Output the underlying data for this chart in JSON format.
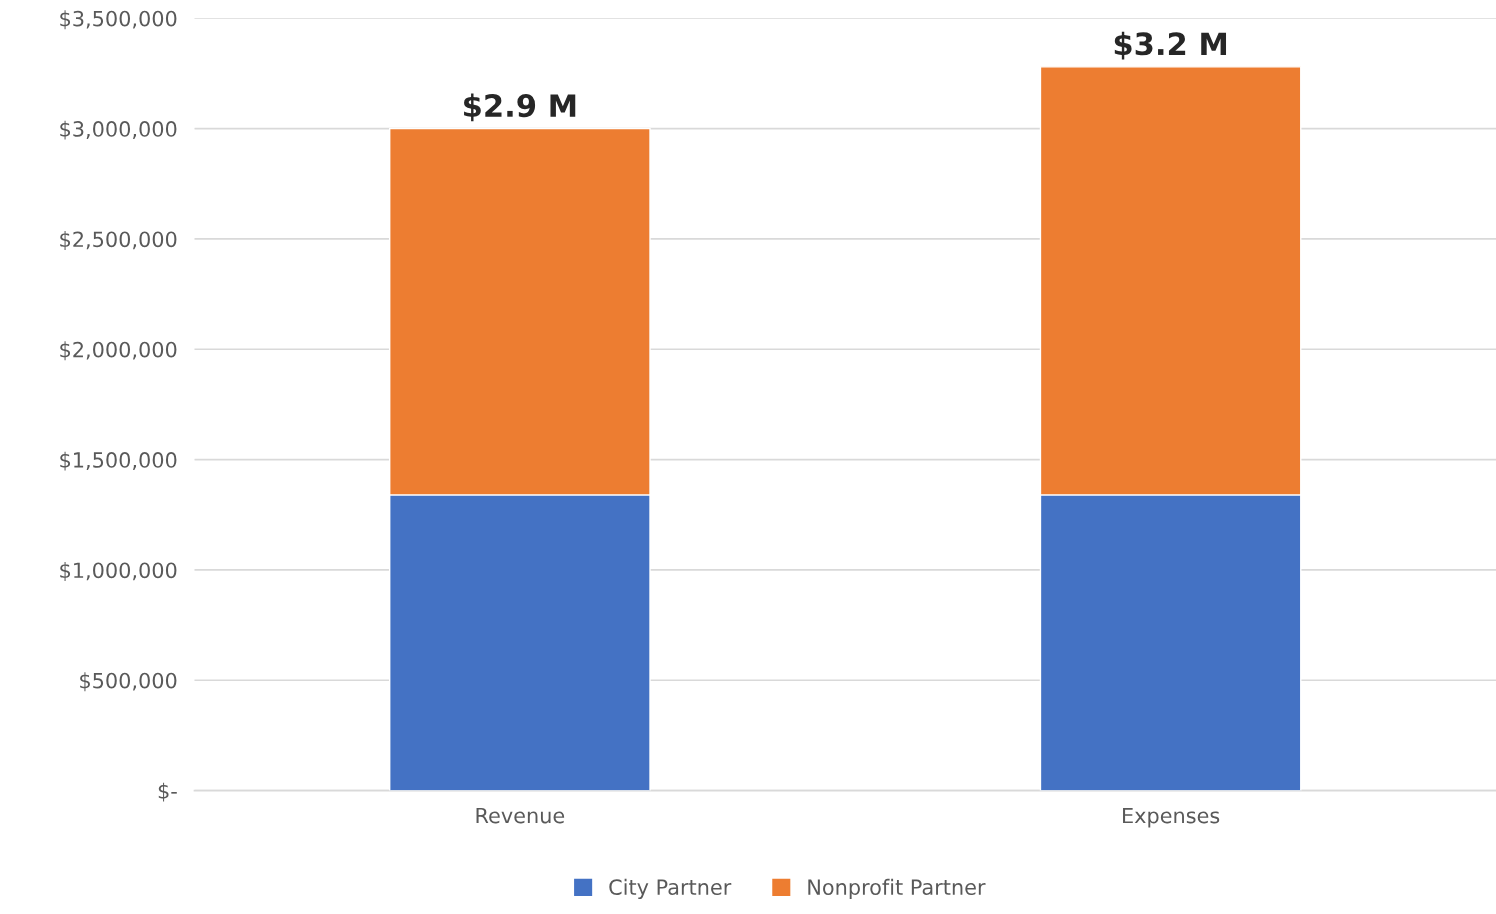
{
  "chart_data": {
    "type": "bar",
    "stacked": true,
    "categories": [
      "Revenue",
      "Expenses"
    ],
    "series": [
      {
        "name": "City Partner",
        "color": "#4472c4",
        "values": [
          1340000,
          1340000
        ]
      },
      {
        "name": "Nonprofit Partner",
        "color": "#ed7d31",
        "values": [
          1660000,
          1940000
        ]
      }
    ],
    "totals": [
      "$2.9 M",
      "$3.2 M"
    ],
    "ylim": [
      0,
      3500000
    ],
    "yticks": [
      {
        "value": 0,
        "label": "$-"
      },
      {
        "value": 500000,
        "label": "$500,000"
      },
      {
        "value": 1000000,
        "label": "$1,000,000"
      },
      {
        "value": 1500000,
        "label": "$1,500,000"
      },
      {
        "value": 2000000,
        "label": "$2,000,000"
      },
      {
        "value": 2500000,
        "label": "$2,500,000"
      },
      {
        "value": 3000000,
        "label": "$3,000,000"
      },
      {
        "value": 3500000,
        "label": "$3,500,000"
      }
    ],
    "grid": "y",
    "legend": "bottom"
  }
}
